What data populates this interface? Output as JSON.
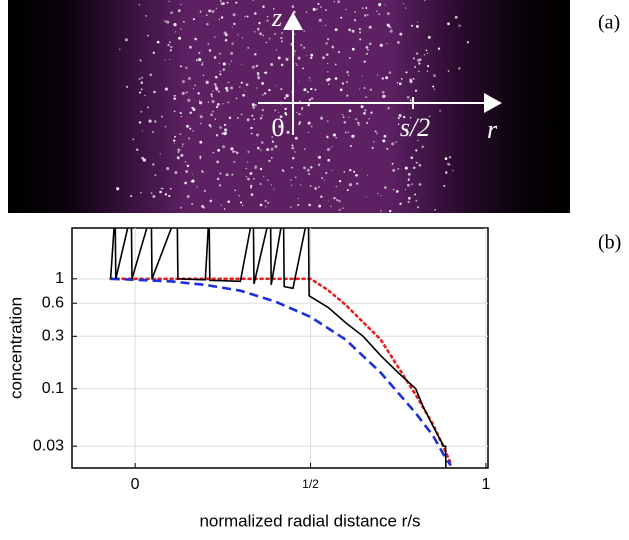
{
  "panel_a": {
    "label": "(a)",
    "z_axis": "z",
    "r_axis": "r",
    "origin": "0",
    "tick": "s/2"
  },
  "panel_b_label": "(b)",
  "chart_data": {
    "type": "line",
    "ylabel": "concentration",
    "xlabel": "normalized radial distance r/s",
    "xlim": [
      -0.18,
      1.006
    ],
    "ylim": [
      0.019,
      2.9
    ],
    "ylog": true,
    "grid": true,
    "xticks": [
      0,
      {
        "value": 0.5,
        "label": "1/2"
      },
      1
    ],
    "yticks": [
      1,
      0.6,
      0.3,
      0.1,
      0.03
    ],
    "series": [
      {
        "color": "#e8201c",
        "style": "dotted",
        "x": [
          -0.07,
          0.5,
          0.55,
          0.6,
          0.7,
          0.8,
          0.85,
          0.9
        ],
        "values": [
          1,
          1,
          0.79,
          0.58,
          0.28,
          0.088,
          0.047,
          0.021
        ]
      },
      {
        "color": "#1c2fe0",
        "style": "dashed",
        "x": [
          -0.07,
          0,
          0.1,
          0.2,
          0.3,
          0.4,
          0.5,
          0.6,
          0.7,
          0.8,
          0.85,
          0.88,
          0.9
        ],
        "values": [
          1,
          0.98,
          0.95,
          0.88,
          0.78,
          0.62,
          0.45,
          0.28,
          0.14,
          0.06,
          0.037,
          0.025,
          0.02
        ]
      },
      {
        "color": "#000000",
        "style": "solid",
        "x": [
          -0.07,
          -0.057,
          -0.055,
          -0.011,
          -0.009,
          0.046,
          0.048,
          0.12,
          0.122,
          0.2,
          0.211,
          0.213,
          0.3,
          0.337,
          0.339,
          0.386,
          0.388,
          0.423,
          0.425,
          0.45,
          0.494,
          0.496,
          0.55,
          0.6,
          0.65,
          0.7,
          0.75,
          0.8,
          0.82,
          0.85,
          0.88,
          0.885,
          0.886
        ],
        "values": [
          1,
          4,
          1,
          4,
          1,
          4,
          1,
          4,
          1,
          0.98,
          4,
          0.97,
          0.95,
          4,
          0.9,
          4,
          0.88,
          4,
          0.85,
          0.82,
          4,
          0.7,
          0.55,
          0.4,
          0.3,
          0.2,
          0.14,
          0.1,
          0.07,
          0.045,
          0.03,
          0.03,
          0.019
        ]
      }
    ]
  }
}
